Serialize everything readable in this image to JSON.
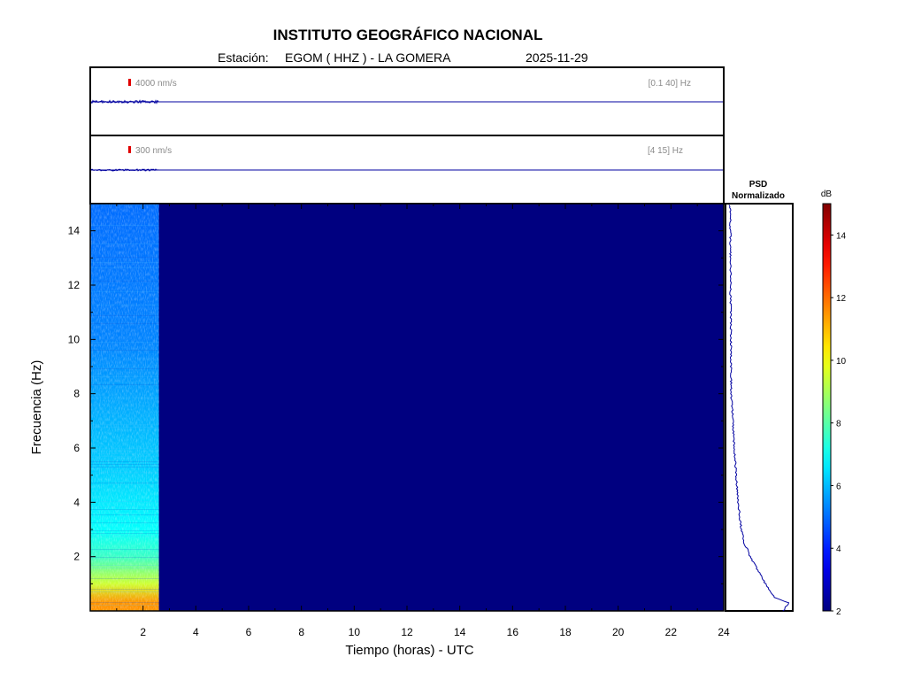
{
  "title": "INSTITUTO GEOGRÁFICO NACIONAL",
  "station_label": "Estación:",
  "station": "EGOM ( HHZ ) - LA GOMERA",
  "date": "2025-11-29",
  "chart_data": {
    "type": "heatmap",
    "xlabel": "Tiempo (horas) - UTC",
    "ylabel": "Frecuencia  (Hz)",
    "xlim": [
      0,
      24
    ],
    "ylim": [
      0,
      15
    ],
    "xticks": [
      2,
      4,
      6,
      8,
      10,
      12,
      14,
      16,
      18,
      20,
      22,
      24
    ],
    "yticks": [
      2,
      4,
      6,
      8,
      10,
      12,
      14
    ],
    "data_end_hour": 2.6,
    "colormap": "jet",
    "colorbar": {
      "label": "dB",
      "range": [
        2,
        15
      ],
      "ticks": [
        2,
        4,
        6,
        8,
        10,
        12,
        14
      ]
    },
    "background_level_db": 2,
    "spectrogram_level_profile": [
      {
        "freq_hz": 0.3,
        "db": 11.5
      },
      {
        "freq_hz": 1.0,
        "db": 9.5
      },
      {
        "freq_hz": 2.0,
        "db": 7.6
      },
      {
        "freq_hz": 3.0,
        "db": 6.9
      },
      {
        "freq_hz": 5.0,
        "db": 6.3
      },
      {
        "freq_hz": 7.0,
        "db": 5.9
      },
      {
        "freq_hz": 10.0,
        "db": 5.3
      },
      {
        "freq_hz": 15.0,
        "db": 5.0
      }
    ],
    "waveforms": [
      {
        "scale": "4000 nm/s",
        "band": "[0.1 40] Hz"
      },
      {
        "scale": "300 nm/s",
        "band": "[4 15] Hz"
      }
    ],
    "psd": {
      "title_line1": "PSD",
      "title_line2": "Normalizado",
      "curve": [
        {
          "freq_hz": 0.0,
          "level": 0.88
        },
        {
          "freq_hz": 0.3,
          "level": 0.96
        },
        {
          "freq_hz": 0.5,
          "level": 0.74
        },
        {
          "freq_hz": 1.0,
          "level": 0.6
        },
        {
          "freq_hz": 1.5,
          "level": 0.48
        },
        {
          "freq_hz": 2.0,
          "level": 0.36
        },
        {
          "freq_hz": 2.5,
          "level": 0.27
        },
        {
          "freq_hz": 3.0,
          "level": 0.22
        },
        {
          "freq_hz": 4.0,
          "level": 0.17
        },
        {
          "freq_hz": 5.0,
          "level": 0.14
        },
        {
          "freq_hz": 6.0,
          "level": 0.11
        },
        {
          "freq_hz": 7.0,
          "level": 0.09
        },
        {
          "freq_hz": 8.0,
          "level": 0.06
        },
        {
          "freq_hz": 10.0,
          "level": 0.06
        },
        {
          "freq_hz": 12.0,
          "level": 0.05
        },
        {
          "freq_hz": 14.0,
          "level": 0.05
        },
        {
          "freq_hz": 15.0,
          "level": 0.04
        }
      ]
    }
  },
  "colors": {
    "trace": "#0000a0",
    "scale_mark": "#e00000",
    "annotation": "#8a8a8a"
  }
}
